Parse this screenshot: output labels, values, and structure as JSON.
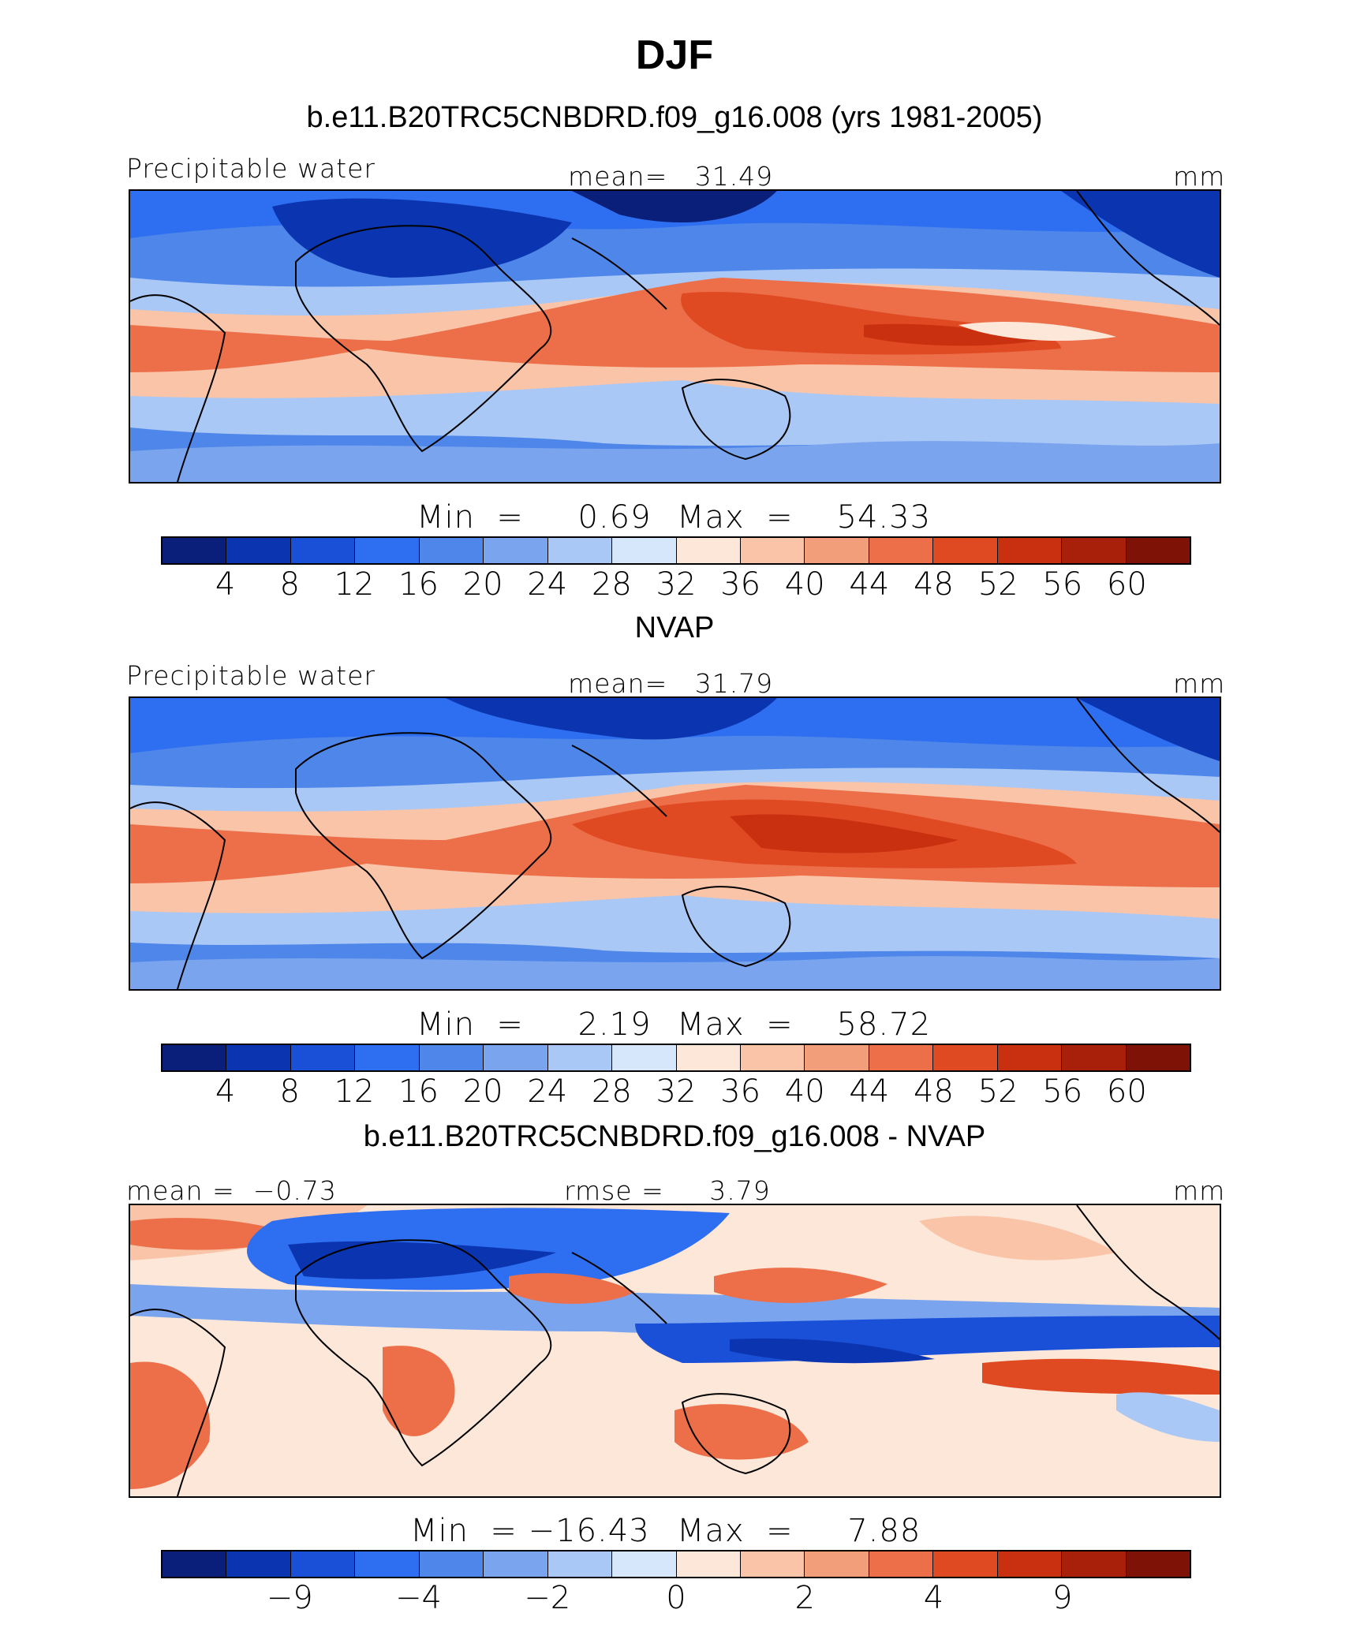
{
  "figure": {
    "title": "DJF"
  },
  "palette": [
    "#0a1f7a",
    "#0b35b0",
    "#1a50d8",
    "#2e6ef0",
    "#4f86ea",
    "#7aa5ee",
    "#a9c8f5",
    "#d6e6fb",
    "#fde7d8",
    "#f9c4a8",
    "#f39e7b",
    "#ec6f49",
    "#e04a22",
    "#c9300f",
    "#a81f0a",
    "#7f1206"
  ],
  "chart_data": [
    {
      "type": "heatmap",
      "title": "b.e11.B20TRC5CNBDRD.f09_g16.008 (yrs 1981-2005)",
      "left_label": "Precipitable water",
      "center_label": "mean=   31.49",
      "units": "mm",
      "min_label": "Min  =     0.69",
      "max_label": "Max  =    54.33",
      "mean": 31.49,
      "min": 0.69,
      "max": 54.33,
      "colorbar_ticks": [
        "4",
        "8",
        "12",
        "16",
        "20",
        "24",
        "28",
        "32",
        "36",
        "40",
        "44",
        "48",
        "52",
        "56",
        "60"
      ]
    },
    {
      "type": "heatmap",
      "title": "NVAP",
      "left_label": "Precipitable water",
      "center_label": "mean=   31.79",
      "units": "mm",
      "min_label": "Min  =     2.19",
      "max_label": "Max  =    58.72",
      "mean": 31.79,
      "min": 2.19,
      "max": 58.72,
      "colorbar_ticks": [
        "4",
        "8",
        "12",
        "16",
        "20",
        "24",
        "28",
        "32",
        "36",
        "40",
        "44",
        "48",
        "52",
        "56",
        "60"
      ]
    },
    {
      "type": "heatmap",
      "title": "b.e11.B20TRC5CNBDRD.f09_g16.008 - NVAP",
      "left_label": "mean =  −0.73",
      "center_label": "rmse =     3.79",
      "units": "mm",
      "min_label": "Min  = −16.43",
      "max_label": "Max  =     7.88",
      "mean": -0.73,
      "rmse": 3.79,
      "min": -16.43,
      "max": 7.88,
      "colorbar_ticks": [
        "−9",
        "−4",
        "−2",
        "0",
        "2",
        "4",
        "9"
      ]
    }
  ]
}
